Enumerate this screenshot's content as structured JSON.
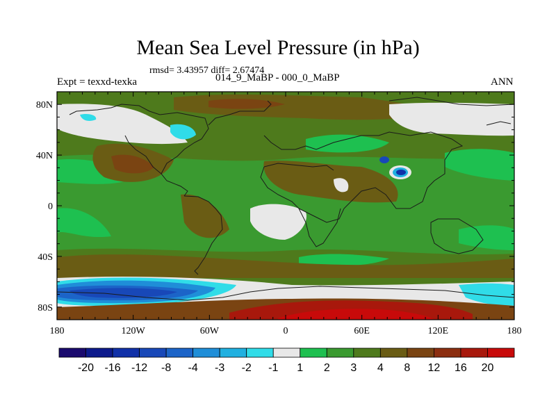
{
  "title": "Mean Sea Level Pressure (in hPa)",
  "stats": {
    "text": "rmsd= 3.43957 diff= 2.67474"
  },
  "left_label": "Expt = texxd-texka",
  "center_label": "014_9_MaBP - 000_0_MaBP",
  "right_label": "ANN",
  "y_axis": {
    "ticks": [
      {
        "value": 80,
        "label": "80N"
      },
      {
        "value": 40,
        "label": "40N"
      },
      {
        "value": 0,
        "label": "0"
      },
      {
        "value": -40,
        "label": "40S"
      },
      {
        "value": -80,
        "label": "80S"
      }
    ]
  },
  "x_axis": {
    "ticks": [
      {
        "value": -180,
        "label": "180"
      },
      {
        "value": -120,
        "label": "120W"
      },
      {
        "value": -60,
        "label": "60W"
      },
      {
        "value": 0,
        "label": "0"
      },
      {
        "value": 60,
        "label": "60E"
      },
      {
        "value": 120,
        "label": "120E"
      },
      {
        "value": 180,
        "label": "180"
      }
    ]
  },
  "colorbar": {
    "colors": [
      "#1a0a6e",
      "#0d1a8c",
      "#1030a8",
      "#1848b8",
      "#1c64c8",
      "#1f8ed8",
      "#20b0e0",
      "#30dce8",
      "#e8e8e8",
      "#1ec050",
      "#3a9a30",
      "#4e7a1c",
      "#6a5c14",
      "#7a4412",
      "#8c2e10",
      "#a8180c",
      "#c80a0a"
    ],
    "labels": [
      "-20",
      "-16",
      "-12",
      "-8",
      "-4",
      "-3",
      "-2",
      "-1",
      "1",
      "2",
      "3",
      "4",
      "8",
      "12",
      "16",
      "20"
    ]
  },
  "chart_data": {
    "type": "filled-contour-map",
    "variable": "Mean Sea Level Pressure difference",
    "units": "hPa",
    "experiment": "texxd-texka",
    "period": "014_9_MaBP - 000_0_MaBP",
    "season": "ANN",
    "rmsd": 3.43957,
    "diff": 2.67474,
    "lon_range": [
      -180,
      180
    ],
    "lat_range": [
      -90,
      90
    ],
    "levels": [
      -20,
      -16,
      -12,
      -8,
      -4,
      -3,
      -2,
      -1,
      1,
      2,
      3,
      4,
      8,
      12,
      16,
      20
    ]
  }
}
